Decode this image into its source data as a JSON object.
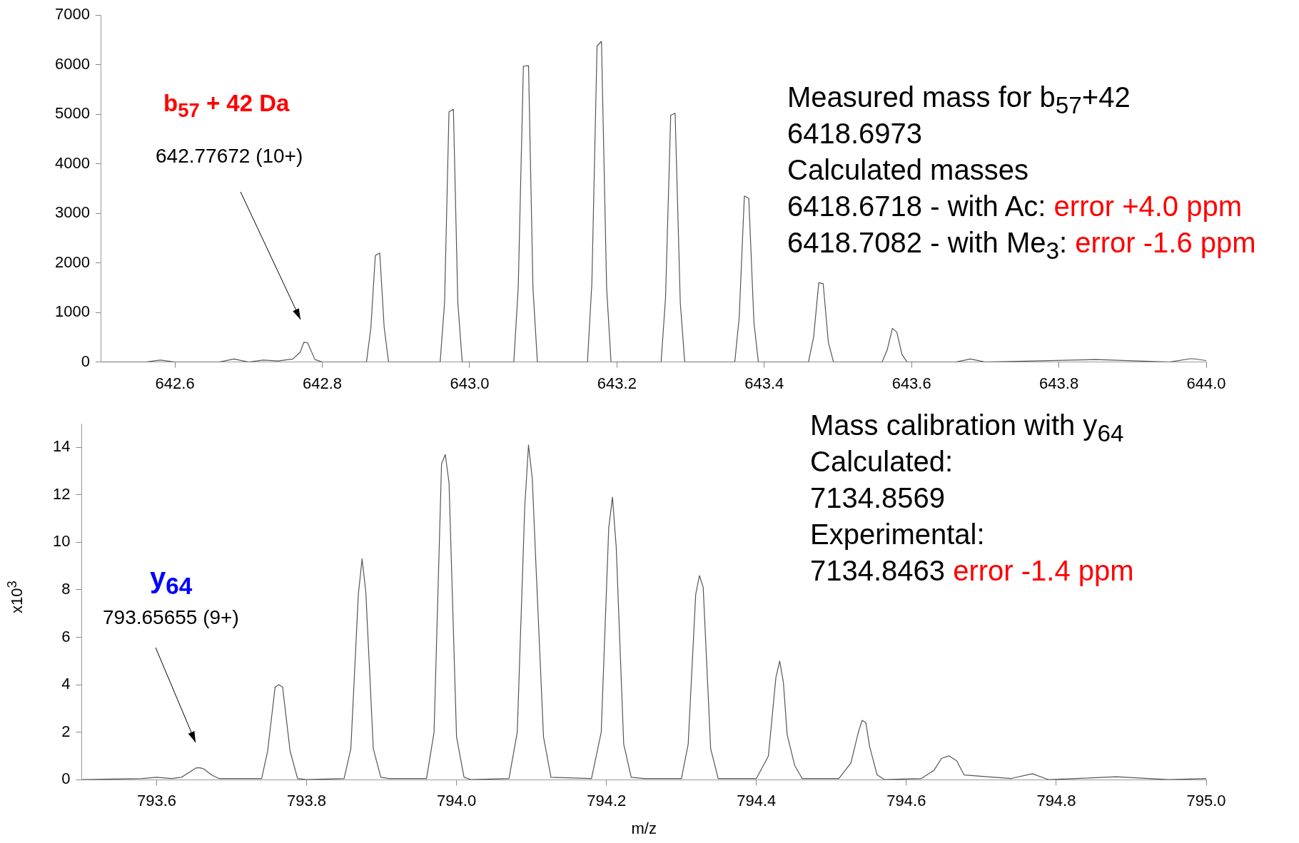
{
  "chart_data": [
    {
      "type": "line",
      "xlim": [
        642.5,
        644.0
      ],
      "ylim": [
        0,
        7000
      ],
      "xticks": [
        642.6,
        642.8,
        {
          "value": 643,
          "label": "643.0"
        },
        643.2,
        643.4,
        643.6,
        643.8,
        {
          "value": 644,
          "label": "644.0"
        }
      ],
      "yticks": [
        0,
        1000,
        2000,
        3000,
        4000,
        5000,
        6000,
        7000
      ],
      "grid": false,
      "legend": false,
      "marker": "none",
      "series": [
        {
          "color": "#555555",
          "x": [
            642.5,
            642.56,
            642.58,
            642.6,
            642.66,
            642.68,
            642.7,
            642.72,
            642.74,
            642.76,
            642.77,
            642.775,
            642.78,
            642.79,
            642.8,
            642.86,
            642.866,
            642.872,
            642.878,
            642.884,
            642.89,
            642.96,
            642.966,
            642.972,
            642.978,
            642.984,
            642.99,
            643.06,
            643.066,
            643.073,
            643.08,
            643.086,
            643.092,
            643.16,
            643.166,
            643.173,
            643.179,
            643.186,
            643.192,
            643.26,
            643.266,
            643.273,
            643.279,
            643.286,
            643.292,
            643.36,
            643.366,
            643.373,
            643.379,
            643.386,
            643.392,
            643.46,
            643.467,
            643.474,
            643.48,
            643.487,
            643.494,
            643.56,
            643.567,
            643.574,
            643.58,
            643.587,
            643.594,
            643.66,
            643.68,
            643.7,
            643.85,
            643.95,
            643.98,
            644.0
          ],
          "values": [
            0,
            0,
            40,
            0,
            0,
            60,
            0,
            40,
            20,
            60,
            200,
            400,
            390,
            50,
            0,
            0,
            700,
            2150,
            2200,
            700,
            0,
            0,
            1200,
            5050,
            5100,
            1200,
            0,
            0,
            1500,
            5970,
            5980,
            1500,
            0,
            0,
            1600,
            6380,
            6470,
            1500,
            0,
            0,
            1300,
            4980,
            5020,
            1200,
            0,
            0,
            900,
            3350,
            3300,
            800,
            0,
            0,
            500,
            1600,
            1580,
            400,
            0,
            0,
            250,
            680,
            600,
            150,
            0,
            0,
            60,
            0,
            50,
            0,
            70,
            30
          ]
        }
      ],
      "annotations": [
        "b$_{57}$ + 42 Da",
        "Measured mass for b$_{57}$+42",
        "6418.6973",
        "Calculated masses",
        "6418.6718 - with Ac: ",
        "error +4.0 ppm",
        "6418.7082 - with Me$_{3}$: ",
        "error -1.6 ppm",
        "642.77672 (10+)"
      ]
    },
    {
      "type": "line",
      "xlabel": "m/z",
      "ylabel": "x10$^{3}$",
      "xlim": [
        793.5,
        795.0
      ],
      "ylim": [
        0,
        15
      ],
      "xticks": [
        793.6,
        793.8,
        {
          "value": 794,
          "label": "794.0"
        },
        794.2,
        794.4,
        794.6,
        794.8,
        {
          "value": 795,
          "label": "795.0"
        }
      ],
      "yticks": [
        0,
        2,
        4,
        6,
        8,
        10,
        12,
        14
      ],
      "grid": false,
      "legend": false,
      "marker": "none",
      "series": [
        {
          "color": "#555555",
          "x": [
            793.5,
            793.58,
            793.6,
            793.62,
            793.633,
            793.643,
            793.653,
            793.658,
            793.663,
            793.673,
            793.683,
            793.7,
            793.74,
            793.748,
            793.758,
            793.763,
            793.768,
            793.778,
            793.788,
            793.8,
            793.85,
            793.859,
            793.869,
            793.874,
            793.879,
            793.889,
            793.899,
            793.91,
            793.96,
            793.97,
            793.98,
            793.985,
            793.99,
            794.0,
            794.01,
            794.02,
            794.07,
            794.081,
            794.091,
            794.096,
            794.101,
            794.106,
            794.116,
            794.126,
            794.18,
            794.193,
            794.203,
            794.208,
            794.213,
            794.223,
            794.233,
            794.25,
            794.3,
            794.309,
            794.319,
            794.324,
            794.329,
            794.339,
            794.349,
            794.4,
            794.416,
            794.426,
            794.431,
            794.436,
            794.441,
            794.451,
            794.461,
            794.51,
            794.526,
            794.536,
            794.541,
            794.546,
            794.551,
            794.561,
            794.571,
            794.62,
            794.637,
            794.647,
            794.657,
            794.667,
            794.677,
            794.74,
            794.768,
            794.79,
            794.88,
            794.95,
            795.0
          ],
          "values": [
            0,
            0.05,
            0.1,
            0.05,
            0.1,
            0.3,
            0.5,
            0.5,
            0.45,
            0.2,
            0.05,
            0.05,
            0.05,
            1.2,
            3.9,
            4.0,
            3.9,
            1.2,
            0.05,
            0,
            0.05,
            1.3,
            7.8,
            9.3,
            7.9,
            1.3,
            0.1,
            0.05,
            0.05,
            2.0,
            13.3,
            13.7,
            12.5,
            1.8,
            0.1,
            0,
            0.05,
            2.0,
            11.5,
            14.1,
            12.7,
            9.0,
            1.8,
            0.1,
            0.05,
            2.0,
            10.6,
            11.9,
            9.8,
            1.5,
            0.1,
            0.05,
            0.05,
            1.5,
            7.8,
            8.6,
            8.1,
            1.3,
            0.05,
            0.05,
            1.0,
            4.3,
            5.0,
            4.1,
            1.9,
            0.6,
            0.05,
            0.05,
            0.7,
            2.0,
            2.5,
            2.4,
            1.4,
            0.2,
            0,
            0.05,
            0.4,
            0.9,
            1.0,
            0.8,
            0.2,
            0.05,
            0.25,
            0,
            0.12,
            0,
            0.05
          ]
        }
      ],
      "annotations": [
        "y$_{64}$",
        "Mass calibration with y$_{64}$",
        "Calculated:",
        "7134.8569",
        "Experimental:",
        "7134.8463 ",
        "error -1.4 ppm",
        "793.65655 (9+)"
      ]
    }
  ]
}
